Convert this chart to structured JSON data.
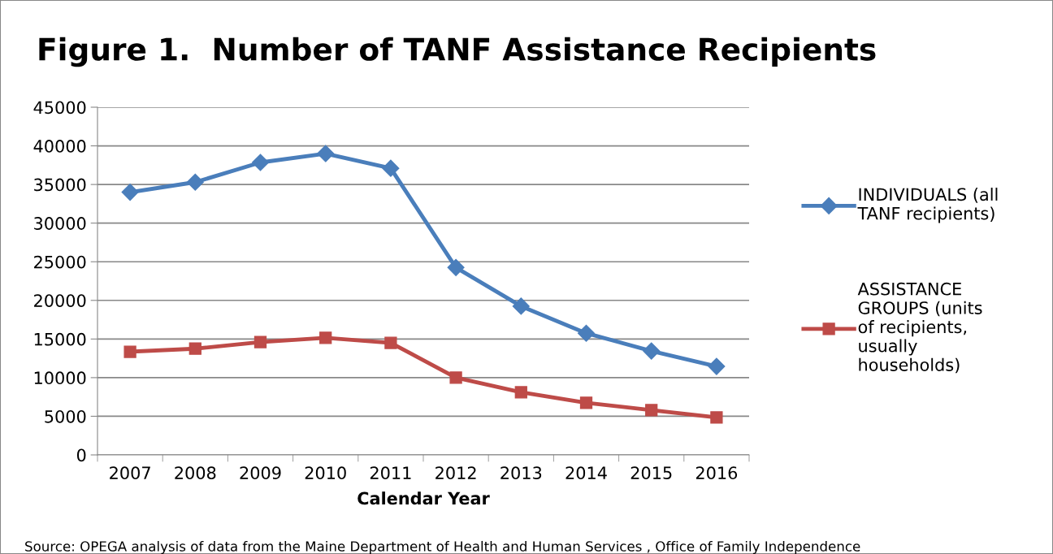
{
  "chart_data": {
    "type": "line",
    "title": "Figure 1.  Number of TANF Assistance Recipients",
    "xlabel": "Calendar Year",
    "categories": [
      "2007",
      "2008",
      "2009",
      "2010",
      "2011",
      "2012",
      "2013",
      "2014",
      "2015",
      "2016"
    ],
    "series": [
      {
        "name": "INDIVIDUALS (all\nTANF recipients)",
        "color": "#4a7ebb",
        "marker": "diamond",
        "values": [
          34000,
          35300,
          37850,
          39000,
          37100,
          24250,
          19250,
          15750,
          13450,
          11450
        ]
      },
      {
        "name": "ASSISTANCE\nGROUPS (units\nof recipients,\nusually\nhouseholds)",
        "color": "#be4b48",
        "marker": "square",
        "values": [
          13350,
          13750,
          14600,
          15150,
          14500,
          10000,
          8100,
          6750,
          5800,
          4850
        ]
      }
    ],
    "ylim": [
      0,
      45000
    ],
    "yticks": [
      0,
      5000,
      10000,
      15000,
      20000,
      25000,
      30000,
      35000,
      40000,
      45000
    ],
    "grid": "y",
    "legend": "right",
    "line_style": "solid",
    "annotations": [
      "Source: OPEGA analysis of data from the Maine Department of Health and Human Services , Office of Family Independence"
    ]
  }
}
